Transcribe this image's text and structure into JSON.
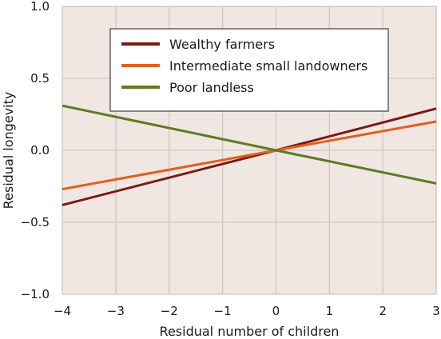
{
  "chart_data": {
    "type": "line",
    "xlabel": "Residual number of children",
    "ylabel": "Residual longevity",
    "xlim": [
      -4,
      3
    ],
    "ylim": [
      -1.0,
      1.0
    ],
    "x_ticks": [
      -4,
      -3,
      -2,
      -1,
      0,
      1,
      2,
      3
    ],
    "x_tick_labels": [
      "−4",
      "−3",
      "−2",
      "−1",
      "0",
      "1",
      "2",
      "3"
    ],
    "y_ticks": [
      1.0,
      0.5,
      0.0,
      -0.5,
      -1.0
    ],
    "y_tick_labels": [
      "1.0",
      "0.5",
      "0.0",
      "−0.5",
      "−1.0"
    ],
    "grid": true,
    "legend_position": "top-center",
    "background_color": "#f0e6e2",
    "grid_color": "#d4cac6",
    "series": [
      {
        "name": "Wealthy farmers",
        "color": "#7a1a10",
        "x": [
          -4,
          0,
          3
        ],
        "y": [
          -0.38,
          0.0,
          0.29
        ]
      },
      {
        "name": "Intermediate small landowners",
        "color": "#e0601e",
        "x": [
          -4,
          0,
          3
        ],
        "y": [
          -0.27,
          0.0,
          0.2
        ]
      },
      {
        "name": "Poor landless",
        "color": "#5e7a22",
        "x": [
          -4,
          0,
          3
        ],
        "y": [
          0.31,
          0.0,
          -0.23
        ]
      }
    ]
  }
}
